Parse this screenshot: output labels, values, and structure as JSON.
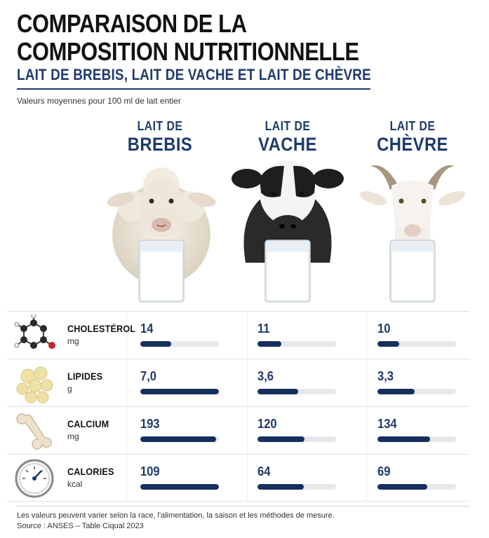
{
  "header": {
    "title_line1": "COMPARAISON DE LA",
    "title_line2": "COMPOSITION NUTRITIONNELLE",
    "subtitle": "LAIT DE BREBIS, LAIT DE VACHE ET LAIT DE CHÈVRE",
    "note": "Valeurs moyennes pour 100 ml de lait entier"
  },
  "columns": [
    {
      "small": "LAIT DE",
      "big": "BREBIS",
      "animal_icon": "sheep-icon"
    },
    {
      "small": "LAIT DE",
      "big": "VACHE",
      "animal_icon": "cow-icon"
    },
    {
      "small": "LAIT DE",
      "big": "CHÈVRE",
      "animal_icon": "goat-icon"
    }
  ],
  "chart_data": {
    "type": "bar",
    "categories": [
      "BREBIS",
      "VACHE",
      "CHÈVRE"
    ],
    "series": [
      {
        "name": "CHOLESTÉROL",
        "unit": "mg",
        "icon": "molecule-icon",
        "values": [
          14,
          11,
          10
        ],
        "labels": [
          "14",
          "11",
          "10"
        ],
        "scale_max": 36
      },
      {
        "name": "LIPIDES",
        "unit": "g",
        "icon": "fat-globules-icon",
        "values": [
          7.0,
          3.6,
          3.3
        ],
        "labels": [
          "7,0",
          "3,6",
          "3,3"
        ],
        "scale_max": 7.0
      },
      {
        "name": "CALCIUM",
        "unit": "mg",
        "icon": "bone-icon",
        "values": [
          193,
          120,
          134
        ],
        "labels": [
          "193",
          "120",
          "134"
        ],
        "scale_max": 200
      },
      {
        "name": "CALORIES",
        "unit": "kcal",
        "icon": "gauge-icon",
        "values": [
          109,
          64,
          69
        ],
        "labels": [
          "109",
          "64",
          "69"
        ],
        "scale_max": 109
      }
    ]
  },
  "footer": {
    "line1": "Les valeurs peuvent varier selon la race, l'alimentation, la saison et les méthodes de mesure.",
    "line2": "Source : ANSES – Table Ciqual 2023"
  },
  "colors": {
    "navy": "#1f3a6b",
    "bar": "#16305e",
    "track": "#e6e8ec"
  }
}
